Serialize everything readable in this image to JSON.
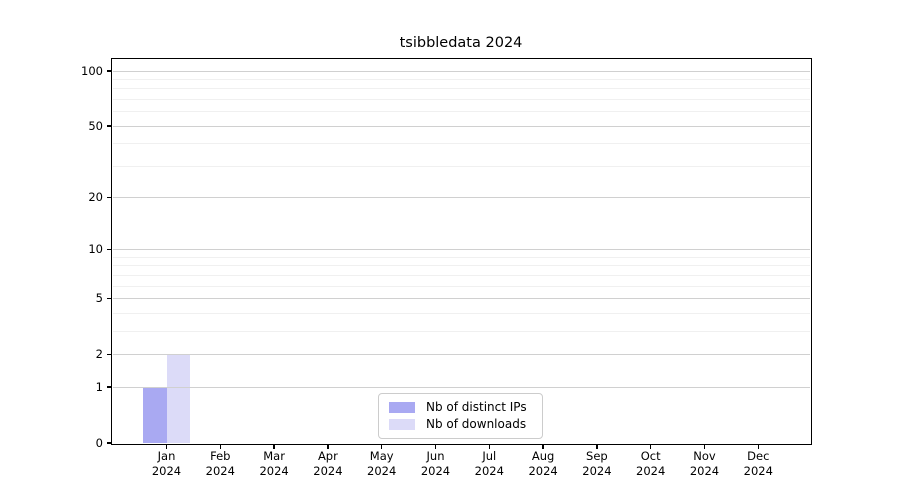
{
  "figure": {
    "title": "tsibbledata 2024"
  },
  "chart_data": {
    "type": "bar",
    "title": "tsibbledata 2024",
    "categories": [
      "Jan 2024",
      "Feb 2024",
      "Mar 2024",
      "Apr 2024",
      "May 2024",
      "Jun 2024",
      "Jul 2024",
      "Aug 2024",
      "Sep 2024",
      "Oct 2024",
      "Nov 2024",
      "Dec 2024"
    ],
    "x_tick_months": [
      "Jan",
      "Feb",
      "Mar",
      "Apr",
      "May",
      "Jun",
      "Jul",
      "Aug",
      "Sep",
      "Oct",
      "Nov",
      "Dec"
    ],
    "x_tick_year": "2024",
    "series": [
      {
        "name": "Nb of distinct IPs",
        "color": "#a9a9f2",
        "values": [
          1,
          0,
          0,
          0,
          0,
          0,
          0,
          0,
          0,
          0,
          0,
          0
        ]
      },
      {
        "name": "Nb of downloads",
        "color": "#dcdbf8",
        "values": [
          2,
          0,
          0,
          0,
          0,
          0,
          0,
          0,
          0,
          0,
          0,
          0
        ]
      }
    ],
    "yscale": "log1p",
    "ylim": [
      0,
      116
    ],
    "y_major_ticks": [
      0,
      1,
      2,
      5,
      10,
      20,
      50,
      100
    ],
    "y_minor_gridlines": [
      3,
      4,
      6,
      7,
      8,
      9,
      30,
      40,
      60,
      70,
      80,
      90
    ],
    "xlabel": "",
    "ylabel": "",
    "grid": "horizontal major+minor, drawn over bars",
    "legend_position": "lower center, inside plot"
  },
  "colors": {
    "background": "#ffffff",
    "spine": "#000000",
    "grid_major": "#d0d0d0",
    "grid_minor": "#f0f0f0",
    "text": "#000000",
    "legend_border": "#cccccc",
    "series_distinct_ips": "#a9a9f2",
    "series_downloads": "#dcdbf8"
  }
}
